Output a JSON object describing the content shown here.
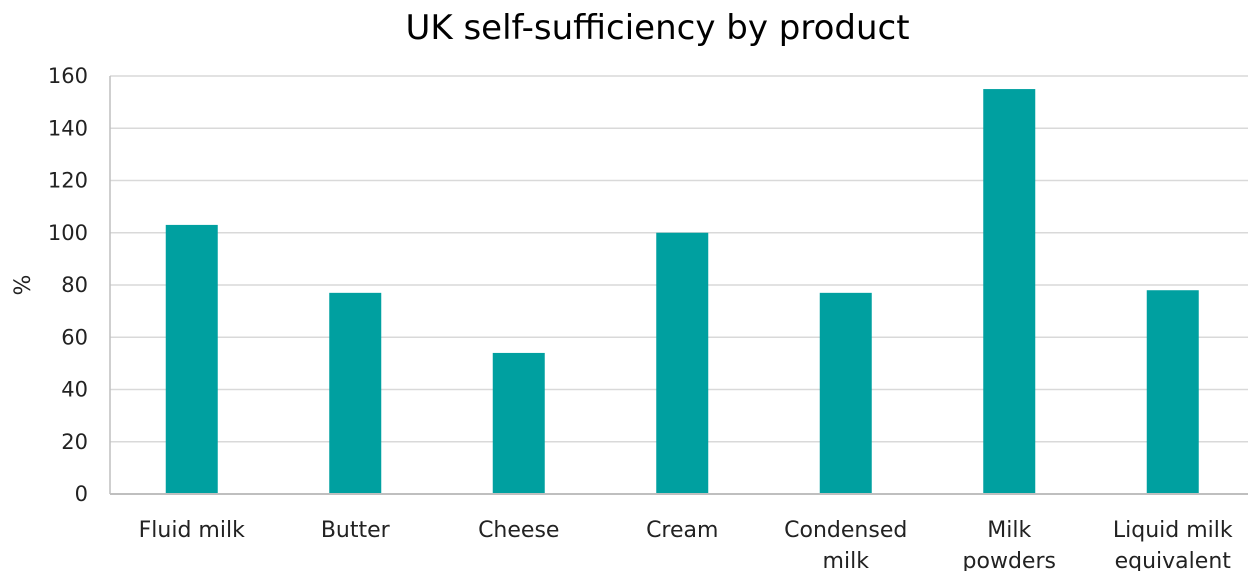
{
  "chart_data": {
    "type": "bar",
    "title": "UK self-sufficiency by product",
    "xlabel": "",
    "ylabel": "%",
    "ylim": [
      0,
      160
    ],
    "yticks": [
      0,
      20,
      40,
      60,
      80,
      100,
      120,
      140,
      160
    ],
    "grid": true,
    "categories": [
      [
        "Fluid milk"
      ],
      [
        "Butter"
      ],
      [
        "Cheese"
      ],
      [
        "Cream"
      ],
      [
        "Condensed",
        "milk"
      ],
      [
        "Milk",
        "powders"
      ],
      [
        "Liquid milk",
        "equivalent"
      ]
    ],
    "values": [
      103,
      77,
      54,
      100,
      77,
      155,
      78
    ],
    "bar_color": "#00A0A0",
    "grid_color": "#D9D9D9",
    "axis_color": "#BFBFBF"
  }
}
